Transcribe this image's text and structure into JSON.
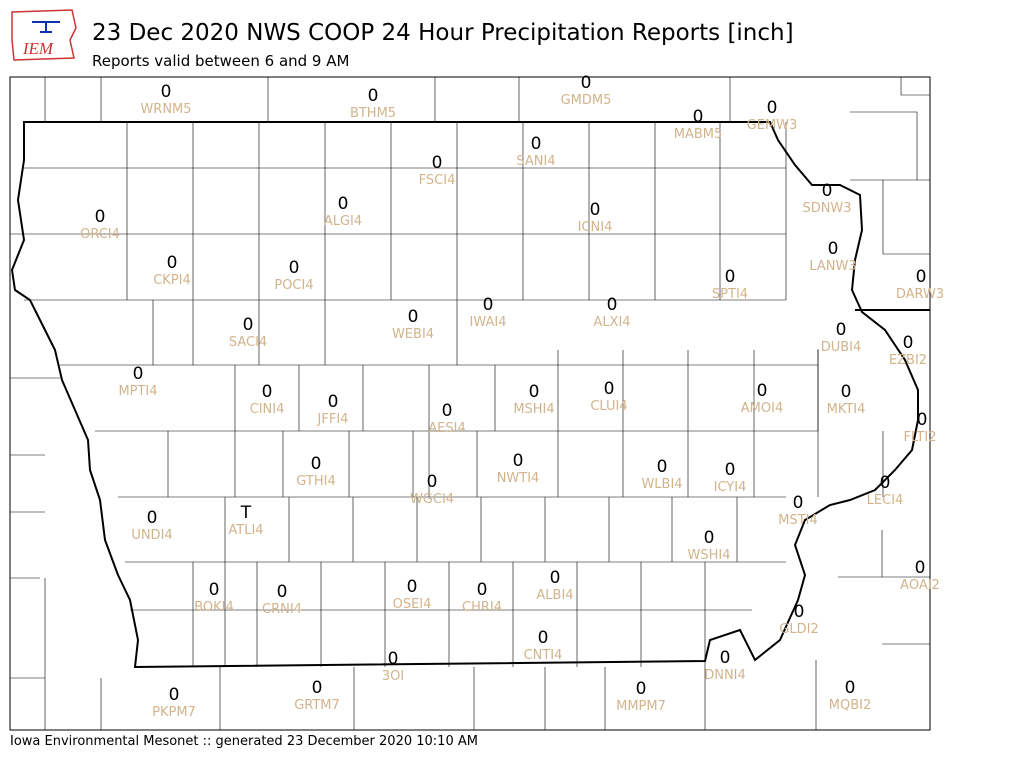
{
  "header": {
    "logo": "IEM",
    "title": "23 Dec 2020 NWS COOP 24 Hour Precipitation Reports [inch]",
    "subtitle": "Reports valid between 6 and 9 AM"
  },
  "stations": [
    {
      "id": "WRNM5",
      "value": "0"
    },
    {
      "id": "BTHM5",
      "value": "0"
    },
    {
      "id": "GMDM5",
      "value": "0"
    },
    {
      "id": "MABM5",
      "value": "0"
    },
    {
      "id": "GEMW3",
      "value": "0"
    },
    {
      "id": "SANI4",
      "value": "0"
    },
    {
      "id": "FSCI4",
      "value": "0"
    },
    {
      "id": "ALGI4",
      "value": "0"
    },
    {
      "id": "ORCI4",
      "value": "0"
    },
    {
      "id": "ICNI4",
      "value": "0"
    },
    {
      "id": "SDNW3",
      "value": "0"
    },
    {
      "id": "CKPI4",
      "value": "0"
    },
    {
      "id": "POCI4",
      "value": "0"
    },
    {
      "id": "LANW3",
      "value": "0"
    },
    {
      "id": "SPTI4",
      "value": "0"
    },
    {
      "id": "DARW3",
      "value": "0"
    },
    {
      "id": "SACI4",
      "value": "0"
    },
    {
      "id": "WEBI4",
      "value": "0"
    },
    {
      "id": "IWAI4",
      "value": "0"
    },
    {
      "id": "ALXI4",
      "value": "0"
    },
    {
      "id": "DUBI4",
      "value": "0"
    },
    {
      "id": "EZBI2",
      "value": "0"
    },
    {
      "id": "MPTI4",
      "value": "0"
    },
    {
      "id": "CINI4",
      "value": "0"
    },
    {
      "id": "JFFI4",
      "value": "0"
    },
    {
      "id": "AESI4",
      "value": "0"
    },
    {
      "id": "MSHI4",
      "value": "0"
    },
    {
      "id": "CLUI4",
      "value": "0"
    },
    {
      "id": "AMOI4",
      "value": "0"
    },
    {
      "id": "MKTI4",
      "value": "0"
    },
    {
      "id": "FLTI2",
      "value": "0"
    },
    {
      "id": "GTHI4",
      "value": "0"
    },
    {
      "id": "WGCI4",
      "value": "0"
    },
    {
      "id": "NWTI4",
      "value": "0"
    },
    {
      "id": "WLBI4",
      "value": "0"
    },
    {
      "id": "ICYI4",
      "value": "0"
    },
    {
      "id": "LECI4",
      "value": "0"
    },
    {
      "id": "MSTI4",
      "value": "0"
    },
    {
      "id": "UNDI4",
      "value": "0"
    },
    {
      "id": "ATLI4",
      "value": "T"
    },
    {
      "id": "WSHI4",
      "value": "0"
    },
    {
      "id": "AOAI2",
      "value": "0"
    },
    {
      "id": "BOKI4",
      "value": "0"
    },
    {
      "id": "CRNI4",
      "value": "0"
    },
    {
      "id": "OSEI4",
      "value": "0"
    },
    {
      "id": "CHRI4",
      "value": "0"
    },
    {
      "id": "ALBI4",
      "value": "0"
    },
    {
      "id": "GLDI2",
      "value": "0"
    },
    {
      "id": "CNTI4",
      "value": "0"
    },
    {
      "id": "3OI",
      "value": "0"
    },
    {
      "id": "DNNI4",
      "value": "0"
    },
    {
      "id": "PKPM7",
      "value": "0"
    },
    {
      "id": "GRTM7",
      "value": "0"
    },
    {
      "id": "MMPM7",
      "value": "0"
    },
    {
      "id": "MQBI2",
      "value": "0"
    }
  ],
  "footer": "Iowa Environmental Mesonet :: generated 23 December 2020 10:10 AM"
}
